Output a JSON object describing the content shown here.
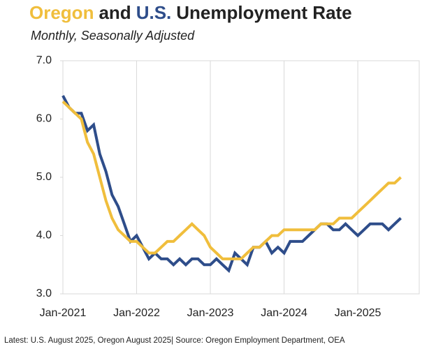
{
  "chart_data": {
    "type": "line",
    "title": [
      "Oregon",
      "and",
      "U.S.",
      "Unemployment Rate"
    ],
    "subtitle": "Monthly, Seasonally Adjusted",
    "footnote": "Latest: U.S. August 2025,  Oregon August 2025| Source: Oregon Employment Department, OEA",
    "x": [
      "2021-01",
      "2021-02",
      "2021-03",
      "2021-04",
      "2021-05",
      "2021-06",
      "2021-07",
      "2021-08",
      "2021-09",
      "2021-10",
      "2021-11",
      "2021-12",
      "2022-01",
      "2022-02",
      "2022-03",
      "2022-04",
      "2022-05",
      "2022-06",
      "2022-07",
      "2022-08",
      "2022-09",
      "2022-10",
      "2022-11",
      "2022-12",
      "2023-01",
      "2023-02",
      "2023-03",
      "2023-04",
      "2023-05",
      "2023-06",
      "2023-07",
      "2023-08",
      "2023-09",
      "2023-10",
      "2023-11",
      "2023-12",
      "2024-01",
      "2024-02",
      "2024-03",
      "2024-04",
      "2024-05",
      "2024-06",
      "2024-07",
      "2024-08",
      "2024-09",
      "2024-10",
      "2024-11",
      "2024-12",
      "2025-01",
      "2025-02",
      "2025-03",
      "2025-04",
      "2025-05",
      "2025-06",
      "2025-07",
      "2025-08"
    ],
    "series": [
      {
        "name": "Oregon",
        "color": "#f0be3c",
        "values": [
          6.3,
          6.2,
          6.1,
          6.0,
          5.6,
          5.4,
          5.0,
          4.6,
          4.3,
          4.1,
          4.0,
          3.9,
          3.9,
          3.8,
          3.7,
          3.7,
          3.8,
          3.9,
          3.9,
          4.0,
          4.1,
          4.2,
          4.1,
          4.0,
          3.8,
          3.7,
          3.6,
          3.6,
          3.6,
          3.6,
          3.7,
          3.8,
          3.8,
          3.9,
          4.0,
          4.0,
          4.1,
          4.1,
          4.1,
          4.1,
          4.1,
          4.1,
          4.2,
          4.2,
          4.2,
          4.3,
          4.3,
          4.3,
          4.4,
          4.5,
          4.6,
          4.7,
          4.8,
          4.9,
          4.9,
          5.0
        ]
      },
      {
        "name": "U.S.",
        "color": "#2e4d8a",
        "values": [
          6.4,
          6.2,
          6.1,
          6.1,
          5.8,
          5.9,
          5.4,
          5.1,
          4.7,
          4.5,
          4.2,
          3.9,
          4.0,
          3.8,
          3.6,
          3.7,
          3.6,
          3.6,
          3.5,
          3.6,
          3.5,
          3.6,
          3.6,
          3.5,
          3.5,
          3.6,
          3.5,
          3.4,
          3.7,
          3.6,
          3.5,
          3.8,
          3.8,
          3.9,
          3.7,
          3.8,
          3.7,
          3.9,
          3.9,
          3.9,
          4.0,
          4.1,
          4.2,
          4.2,
          4.1,
          4.1,
          4.2,
          4.1,
          4.0,
          4.1,
          4.2,
          4.2,
          4.2,
          4.1,
          4.2,
          4.3
        ]
      }
    ],
    "xlim": [
      "2021-01",
      "2025-11"
    ],
    "xticks": [
      {
        "value": "2021-01",
        "label": "Jan-2021"
      },
      {
        "value": "2022-01",
        "label": "Jan-2022"
      },
      {
        "value": "2023-01",
        "label": "Jan-2023"
      },
      {
        "value": "2024-01",
        "label": "Jan-2024"
      },
      {
        "value": "2025-01",
        "label": "Jan-2025"
      }
    ],
    "ylim": [
      3,
      7
    ],
    "yticks": [
      {
        "value": 3,
        "label": "3.0"
      },
      {
        "value": 4,
        "label": "4.0"
      },
      {
        "value": 5,
        "label": "5.0"
      },
      {
        "value": 6,
        "label": "6.0"
      },
      {
        "value": 7,
        "label": "7.0"
      }
    ],
    "grid": "x"
  }
}
